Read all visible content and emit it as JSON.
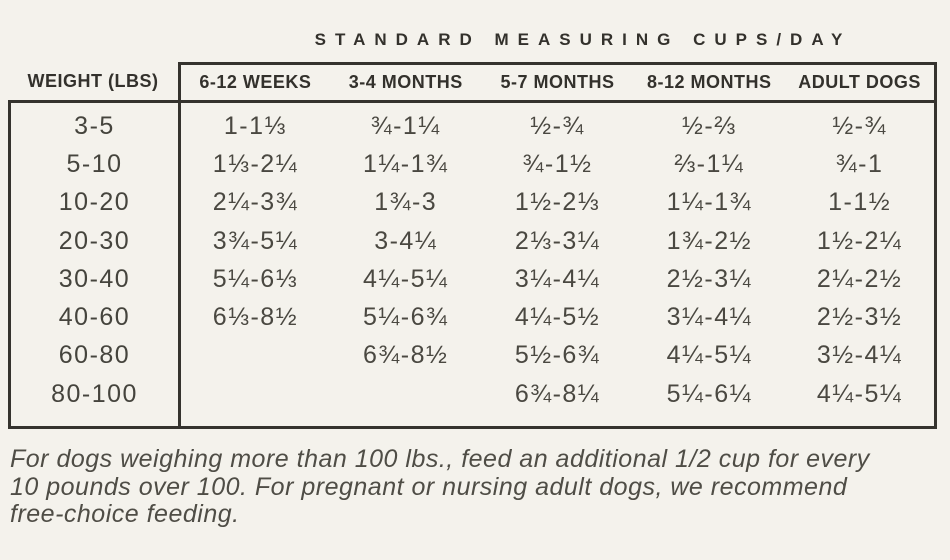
{
  "colors": {
    "background": "#f4f2ec",
    "border": "#35332e",
    "header_text": "#33312c",
    "value_text": "#4a4841",
    "footnote_text": "#4f4d46"
  },
  "chart_data": {
    "type": "table",
    "title": "STANDARD MEASURING CUPS/DAY",
    "columns": [
      "WEIGHT (LBS)",
      "6-12 WEEKS",
      "3-4 MONTHS",
      "5-7 MONTHS",
      "8-12 MONTHS",
      "ADULT DOGS"
    ],
    "rows": [
      [
        "3-5",
        "1-1⅓",
        "¾-1¼",
        "½-¾",
        "½-⅔",
        "½-¾"
      ],
      [
        "5-10",
        "1⅓-2¼",
        "1¼-1¾",
        "¾-1½",
        "⅔-1¼",
        "¾-1"
      ],
      [
        "10-20",
        "2¼-3¾",
        "1¾-3",
        "1½-2⅓",
        "1¼-1¾",
        "1-1½"
      ],
      [
        "20-30",
        "3¾-5¼",
        "3-4¼",
        "2⅓-3¼",
        "1¾-2½",
        "1½-2¼"
      ],
      [
        "30-40",
        "5¼-6⅓",
        "4¼-5¼",
        "3¼-4¼",
        "2½-3¼",
        "2¼-2½"
      ],
      [
        "40-60",
        "6⅓-8½",
        "5¼-6¾",
        "4¼-5½",
        "3¼-4¼",
        "2½-3½"
      ],
      [
        "60-80",
        "",
        "6¾-8½",
        "5½-6¾",
        "4¼-5¼",
        "3½-4¼"
      ],
      [
        "80-100",
        "",
        "",
        "6¾-8¼",
        "5¼-6¼",
        "4¼-5¼"
      ]
    ],
    "units": "cups per day",
    "footnote": "For dogs weighing more than 100 lbs., feed an additional 1/2 cup for every 10 pounds over 100. For pregnant or nursing adult dogs, we recommend free-choice feeding."
  },
  "footer": {
    "lines": [
      "For dogs weighing more than 100 lbs., feed an additional 1/2 cup for every",
      "10 pounds over 100. For pregnant or nursing adult dogs, we recommend",
      "free-choice feeding."
    ]
  }
}
